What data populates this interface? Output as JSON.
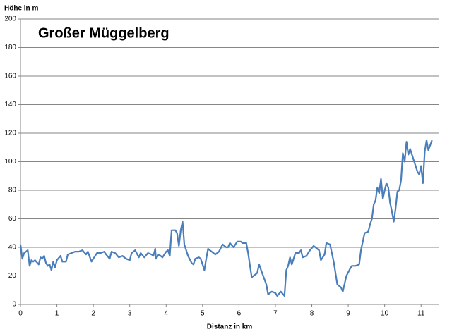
{
  "chart_data": {
    "type": "line",
    "title": "Großer Müggelberg",
    "y_label": "Höhe in m",
    "x_label": "Distanz in km",
    "x": [
      0,
      0.05,
      0.1,
      0.2,
      0.25,
      0.3,
      0.35,
      0.4,
      0.5,
      0.55,
      0.6,
      0.65,
      0.7,
      0.75,
      0.8,
      0.85,
      0.9,
      0.95,
      1.0,
      1.1,
      1.15,
      1.25,
      1.3,
      1.4,
      1.5,
      1.6,
      1.7,
      1.8,
      1.85,
      1.95,
      2.0,
      2.1,
      2.2,
      2.3,
      2.35,
      2.45,
      2.5,
      2.6,
      2.7,
      2.8,
      2.9,
      3.0,
      3.05,
      3.15,
      3.25,
      3.3,
      3.4,
      3.5,
      3.6,
      3.65,
      3.7,
      3.72,
      3.8,
      3.9,
      4.0,
      4.05,
      4.1,
      4.15,
      4.25,
      4.3,
      4.35,
      4.4,
      4.45,
      4.5,
      4.6,
      4.7,
      4.75,
      4.8,
      4.9,
      4.95,
      5.05,
      5.1,
      5.15,
      5.25,
      5.35,
      5.45,
      5.55,
      5.65,
      5.7,
      5.75,
      5.85,
      5.95,
      6.05,
      6.1,
      6.2,
      6.25,
      6.35,
      6.45,
      6.5,
      6.55,
      6.65,
      6.75,
      6.8,
      6.9,
      7.0,
      7.05,
      7.15,
      7.25,
      7.3,
      7.35,
      7.4,
      7.45,
      7.55,
      7.65,
      7.7,
      7.75,
      7.85,
      7.95,
      8.05,
      8.1,
      8.2,
      8.25,
      8.35,
      8.4,
      8.5,
      8.6,
      8.7,
      8.8,
      8.85,
      8.95,
      9.05,
      9.1,
      9.2,
      9.3,
      9.35,
      9.4,
      9.45,
      9.55,
      9.6,
      9.65,
      9.7,
      9.75,
      9.8,
      9.85,
      9.9,
      9.95,
      10.0,
      10.05,
      10.1,
      10.15,
      10.2,
      10.25,
      10.3,
      10.35,
      10.4,
      10.45,
      10.5,
      10.55,
      10.6,
      10.65,
      10.7,
      10.8,
      10.9,
      10.95,
      11.0,
      11.05,
      11.1,
      11.15,
      11.2,
      11.3
    ],
    "values": [
      42,
      32,
      36,
      38,
      27,
      31,
      30,
      31,
      28,
      33,
      32,
      34,
      29,
      27,
      28,
      24,
      30,
      26,
      31,
      34,
      30,
      30,
      35,
      36,
      37,
      37,
      38,
      35,
      37,
      30,
      32,
      36,
      36,
      37,
      35,
      32,
      37,
      36,
      33,
      34,
      32,
      31,
      36,
      38,
      33,
      36,
      33,
      36,
      35,
      34,
      39,
      32,
      35,
      33,
      37,
      38,
      34,
      52,
      52,
      50,
      41,
      52,
      58,
      42,
      34,
      29,
      28,
      32,
      33,
      32,
      24,
      32,
      39,
      37,
      35,
      37,
      42,
      40,
      40,
      43,
      40,
      44,
      44,
      43,
      43,
      36,
      19,
      21,
      22,
      28,
      21,
      14,
      7,
      9,
      8,
      6,
      9,
      6,
      24,
      27,
      33,
      28,
      36,
      36,
      38,
      33,
      34,
      38,
      41,
      40,
      38,
      31,
      35,
      43,
      42,
      30,
      14,
      12,
      9,
      20,
      25,
      27,
      27,
      28,
      38,
      44,
      50,
      51,
      56,
      60,
      70,
      73,
      82,
      78,
      88,
      74,
      80,
      85,
      82,
      71,
      65,
      58,
      67,
      79,
      80,
      87,
      106,
      100,
      114,
      105,
      109,
      101,
      93,
      91,
      97,
      85,
      107,
      115,
      108,
      115
    ],
    "color": "#4a7ebb",
    "xlim": [
      0,
      11.5
    ],
    "xticks": [
      0,
      1,
      2,
      3,
      4,
      5,
      6,
      7,
      8,
      9,
      10,
      11
    ],
    "ylim": [
      0,
      200
    ],
    "yticks": [
      0,
      20,
      40,
      60,
      80,
      100,
      120,
      140,
      160,
      180,
      200
    ],
    "grid": true
  }
}
